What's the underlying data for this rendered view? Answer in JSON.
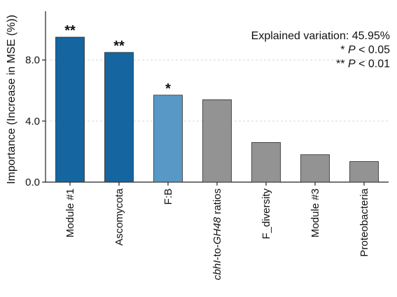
{
  "chart_data": {
    "type": "bar",
    "ylabel": "Importance (Increase in MSE (%))",
    "ylim": [
      0,
      11.2
    ],
    "yticks": [
      0.0,
      4.0,
      8.0
    ],
    "ytick_labels": [
      "0.0",
      "4.0",
      "8.0"
    ],
    "grid": "horizontal dashed",
    "categories": [
      {
        "label": "Module #1",
        "value": 9.5,
        "color": "#1565a0",
        "sig": "**"
      },
      {
        "label": "Ascomycota",
        "value": 8.5,
        "color": "#1565a0",
        "sig": "**"
      },
      {
        "label": "F:B",
        "value": 5.7,
        "color": "#5898c6",
        "sig": "*"
      },
      {
        "label_parts": [
          {
            "t": "cbhI",
            "i": true
          },
          {
            "t": "-to-",
            "i": false
          },
          {
            "t": "GH48",
            "i": true
          },
          {
            "t": " ratios",
            "i": false
          }
        ],
        "value": 5.4,
        "color": "#939393",
        "sig": ""
      },
      {
        "label": "F_diversity",
        "value": 2.6,
        "color": "#939393",
        "sig": ""
      },
      {
        "label": "Module #3",
        "value": 1.8,
        "color": "#939393",
        "sig": ""
      },
      {
        "label": "Proteobacteria",
        "value": 1.35,
        "color": "#939393",
        "sig": ""
      }
    ],
    "annotations": [
      [
        {
          "t": "Explained variation: 45.95%",
          "i": false
        }
      ],
      [
        {
          "t": "* ",
          "i": false
        },
        {
          "t": "P",
          "i": true
        },
        {
          "t": " < 0.05",
          "i": false
        }
      ],
      [
        {
          "t": "** ",
          "i": false
        },
        {
          "t": "P",
          "i": true
        },
        {
          "t": " < 0.01",
          "i": false
        }
      ]
    ]
  }
}
